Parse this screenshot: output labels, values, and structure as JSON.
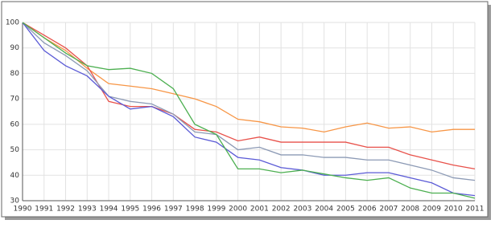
{
  "chart_data": {
    "type": "line",
    "x": [
      1990,
      1991,
      1992,
      1993,
      1994,
      1995,
      1996,
      1997,
      1998,
      1999,
      2000,
      2001,
      2002,
      2003,
      2004,
      2005,
      2006,
      2007,
      2008,
      2009,
      2010,
      2011
    ],
    "xlim": [
      1990,
      2011
    ],
    "xticks": [
      1990,
      1991,
      1992,
      1993,
      1994,
      1995,
      1996,
      1997,
      1998,
      1999,
      2000,
      2001,
      2002,
      2003,
      2004,
      2005,
      2006,
      2007,
      2008,
      2009,
      2010,
      2011
    ],
    "ylim": [
      30,
      100
    ],
    "yticks": [
      30,
      40,
      50,
      60,
      70,
      80,
      90,
      100
    ],
    "grid": true,
    "series": [
      {
        "color": "#f79646",
        "values": [
          100,
          94,
          89,
          82,
          76,
          75,
          74,
          72,
          70,
          67,
          62,
          61,
          59,
          58.5,
          57,
          59,
          60.5,
          58.5,
          59,
          57,
          58,
          58
        ]
      },
      {
        "color": "#e8514a",
        "values": [
          100,
          95,
          90,
          83,
          69,
          67,
          67,
          64,
          58,
          57,
          53.5,
          55,
          53,
          53,
          53,
          53,
          51,
          51,
          48,
          46,
          44,
          42.5
        ]
      },
      {
        "color": "#8c9ab5",
        "values": [
          100,
          92,
          87,
          81,
          71,
          69,
          68,
          64,
          57,
          56,
          50,
          51,
          48,
          48,
          47,
          47,
          46,
          46,
          44,
          42,
          39,
          38
        ]
      },
      {
        "color": "#5b5bd6",
        "values": [
          100,
          89,
          83,
          79,
          71,
          66,
          67,
          63,
          55,
          53,
          47,
          46,
          43,
          42,
          40,
          40,
          41,
          41,
          39,
          37,
          33,
          32
        ]
      },
      {
        "color": "#4caf50",
        "values": [
          100,
          94,
          88,
          83,
          81.5,
          82,
          80,
          74,
          60,
          56,
          42.5,
          42.5,
          41,
          42,
          40.5,
          39,
          38,
          39,
          35,
          33,
          33,
          31
        ]
      }
    ]
  }
}
